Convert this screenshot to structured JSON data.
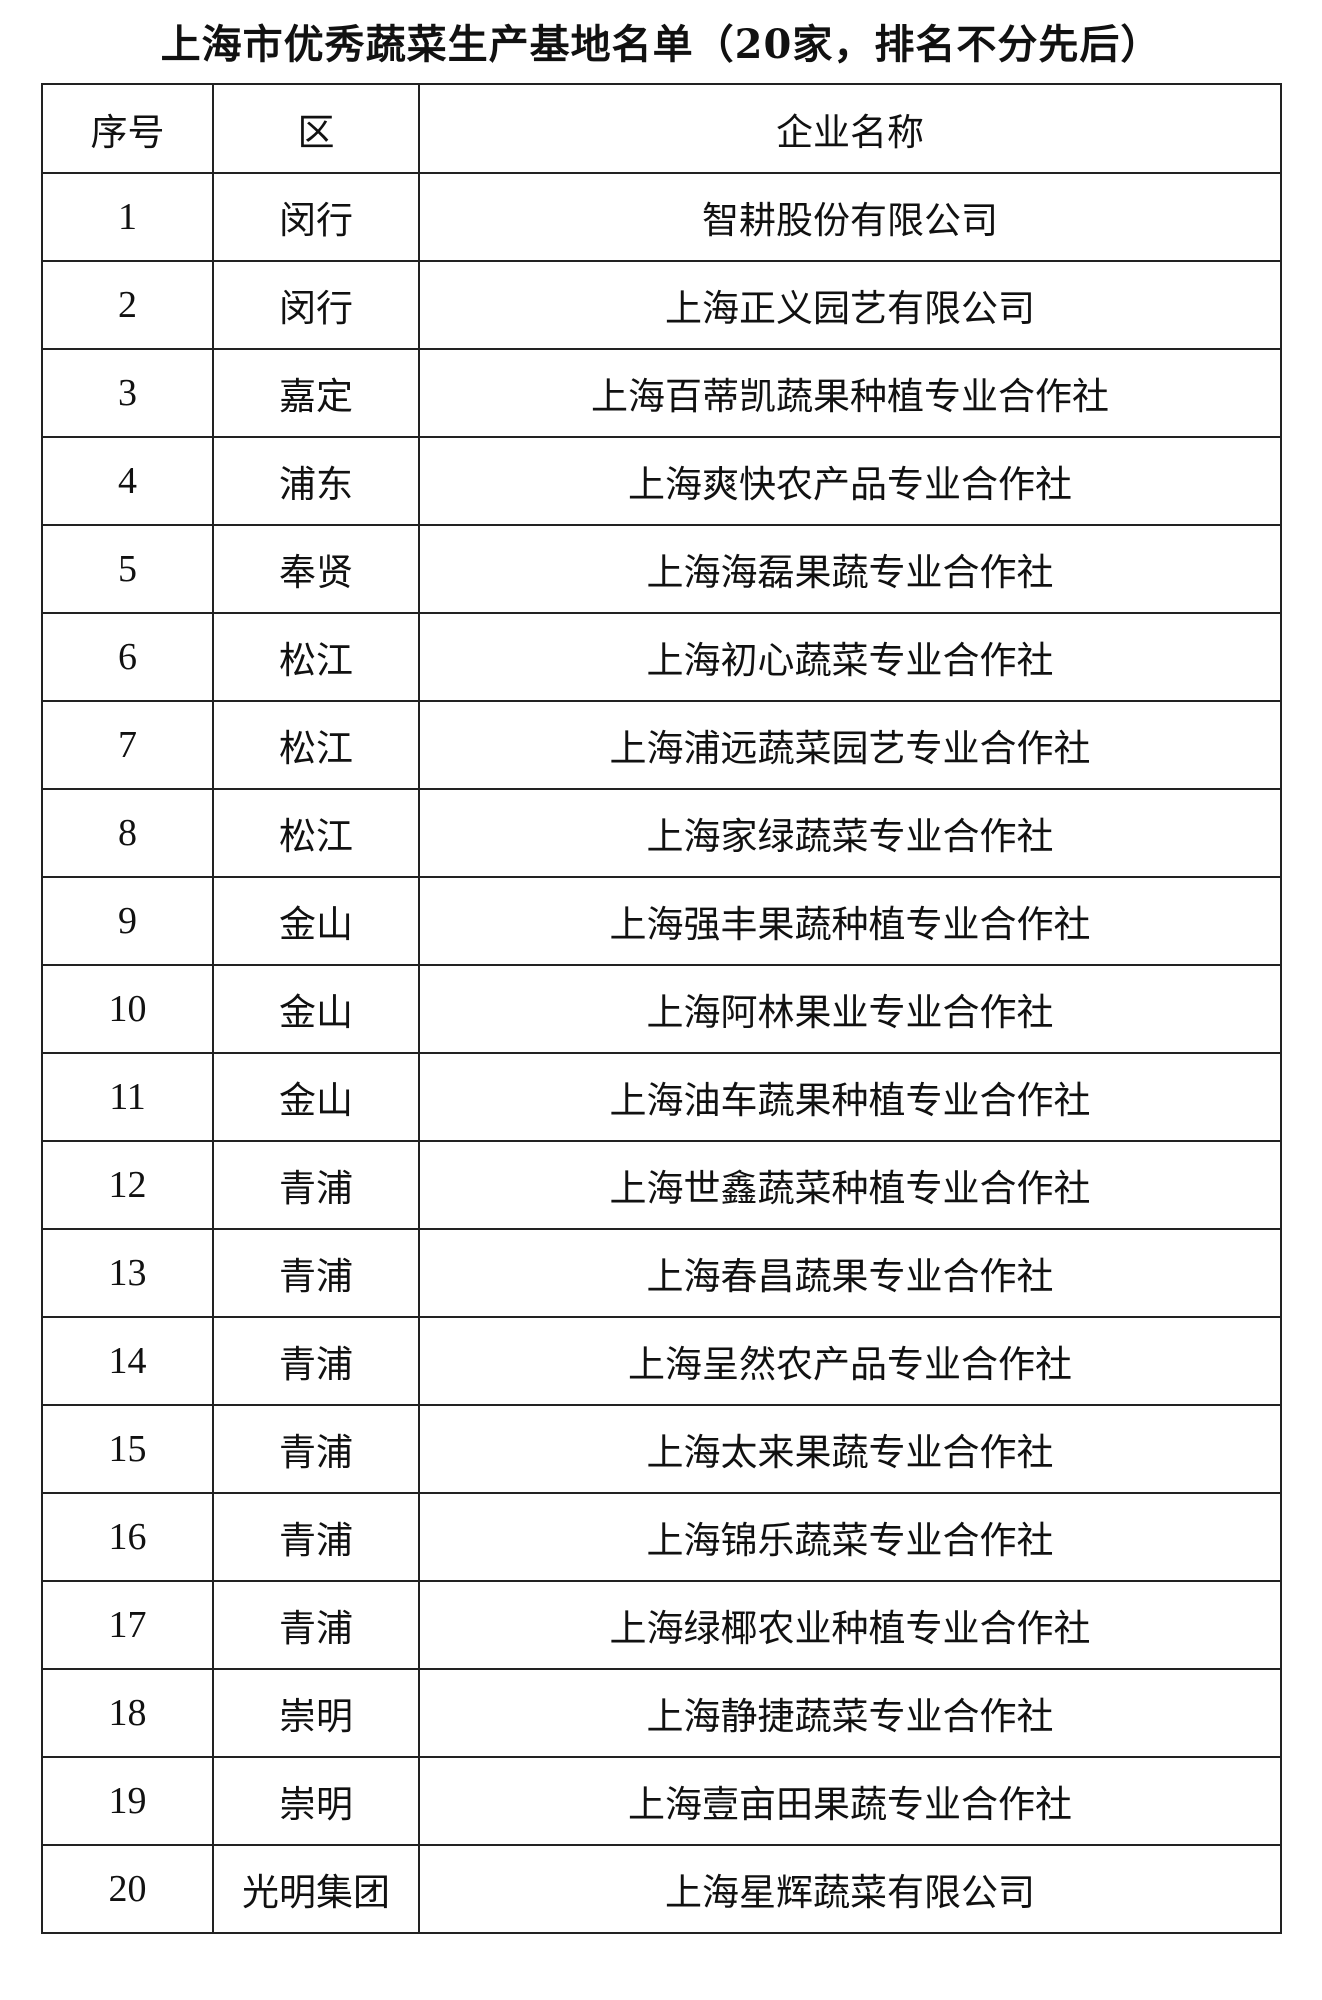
{
  "title": "上海市优秀蔬菜生产基地名单（20家，排名不分先后）",
  "table": {
    "headers": [
      "序号",
      "区",
      "企业名称"
    ],
    "rows": [
      [
        "1",
        "闵行",
        "智耕股份有限公司"
      ],
      [
        "2",
        "闵行",
        "上海正义园艺有限公司"
      ],
      [
        "3",
        "嘉定",
        "上海百蒂凯蔬果种植专业合作社"
      ],
      [
        "4",
        "浦东",
        "上海爽快农产品专业合作社"
      ],
      [
        "5",
        "奉贤",
        "上海海磊果蔬专业合作社"
      ],
      [
        "6",
        "松江",
        "上海初心蔬菜专业合作社"
      ],
      [
        "7",
        "松江",
        "上海浦远蔬菜园艺专业合作社"
      ],
      [
        "8",
        "松江",
        "上海家绿蔬菜专业合作社"
      ],
      [
        "9",
        "金山",
        "上海强丰果蔬种植专业合作社"
      ],
      [
        "10",
        "金山",
        "上海阿林果业专业合作社"
      ],
      [
        "11",
        "金山",
        "上海油车蔬果种植专业合作社"
      ],
      [
        "12",
        "青浦",
        "上海世鑫蔬菜种植专业合作社"
      ],
      [
        "13",
        "青浦",
        "上海春昌蔬果专业合作社"
      ],
      [
        "14",
        "青浦",
        "上海呈然农产品专业合作社"
      ],
      [
        "15",
        "青浦",
        "上海太来果蔬专业合作社"
      ],
      [
        "16",
        "青浦",
        "上海锦乐蔬菜专业合作社"
      ],
      [
        "17",
        "青浦",
        "上海绿椰农业种植专业合作社"
      ],
      [
        "18",
        "崇明",
        "上海静捷蔬菜专业合作社"
      ],
      [
        "19",
        "崇明",
        "上海壹亩田果蔬专业合作社"
      ],
      [
        "20",
        "光明集团",
        "上海星辉蔬菜有限公司"
      ]
    ]
  }
}
